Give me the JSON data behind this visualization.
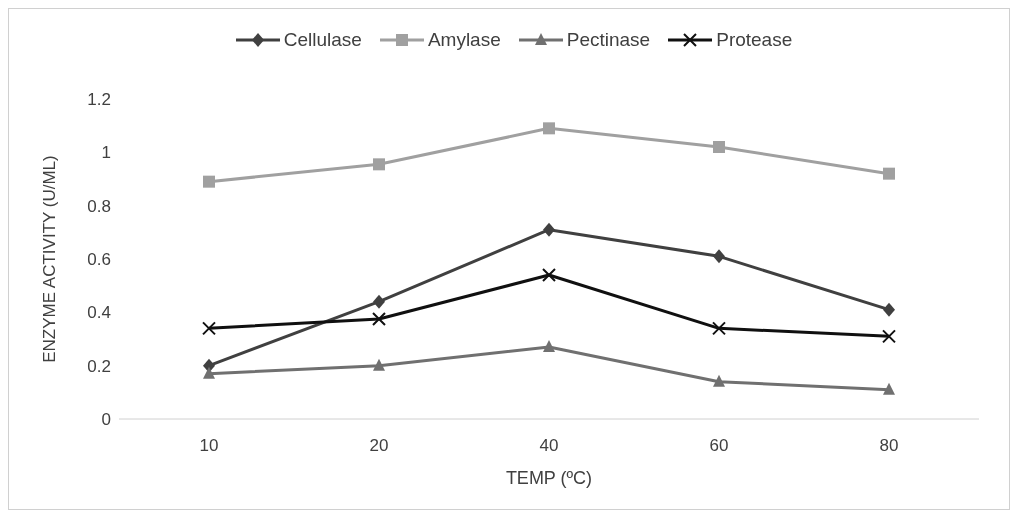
{
  "chart_data": {
    "type": "line",
    "xlabel": "TEMP (ºC)",
    "ylabel": "ENZYME ACTIVITY (U/ML)",
    "categories": [
      "10",
      "20",
      "40",
      "60",
      "80"
    ],
    "series": [
      {
        "name": "Cellulase",
        "color": "#404040",
        "marker": "diamond",
        "values": [
          0.2,
          0.44,
          0.71,
          0.61,
          0.41
        ]
      },
      {
        "name": "Amylase",
        "color": "#a0a0a0",
        "marker": "square",
        "values": [
          0.89,
          0.955,
          1.09,
          1.02,
          0.92
        ]
      },
      {
        "name": "Pectinase",
        "color": "#707070",
        "marker": "triangle",
        "values": [
          0.17,
          0.2,
          0.27,
          0.14,
          0.11
        ]
      },
      {
        "name": "Protease",
        "color": "#101010",
        "marker": "cross",
        "values": [
          0.34,
          0.375,
          0.54,
          0.34,
          0.31
        ]
      }
    ],
    "ylim": [
      0,
      1.2
    ],
    "yticks": [
      0,
      {
        "value": 0.2,
        "label": "0.2"
      },
      {
        "value": 0.4,
        "label": "0.4"
      },
      {
        "value": 0.6,
        "label": "0.6"
      },
      {
        "value": 0.8,
        "label": "0.8"
      },
      1,
      {
        "value": 1.2,
        "label": "1.2"
      }
    ],
    "grid": false,
    "legend": "top",
    "line_style": "solid"
  }
}
